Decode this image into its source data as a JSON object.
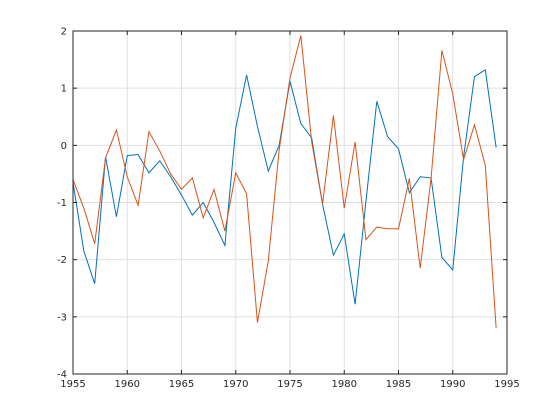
{
  "chart_data": {
    "type": "line",
    "title": "",
    "xlabel": "",
    "ylabel": "",
    "xlim": [
      1955,
      1995
    ],
    "ylim": [
      -4,
      2
    ],
    "xticks": [
      1955,
      1960,
      1965,
      1970,
      1975,
      1980,
      1985,
      1990,
      1995
    ],
    "yticks": [
      -4,
      -3,
      -2,
      -1,
      0,
      1,
      2
    ],
    "grid": true,
    "x": [
      1955,
      1956,
      1957,
      1958,
      1959,
      1960,
      1961,
      1962,
      1963,
      1964,
      1965,
      1966,
      1967,
      1968,
      1969,
      1970,
      1971,
      1972,
      1973,
      1974,
      1975,
      1976,
      1977,
      1978,
      1979,
      1980,
      1981,
      1982,
      1983,
      1984,
      1985,
      1986,
      1987,
      1988,
      1989,
      1990,
      1991,
      1992,
      1993,
      1994
    ],
    "series": [
      {
        "color": "#0072bd",
        "values": [
          -0.65,
          -1.85,
          -2.42,
          -0.2,
          -1.25,
          -0.18,
          -0.16,
          -0.48,
          -0.27,
          -0.55,
          -0.87,
          -1.22,
          -1.0,
          -1.35,
          -1.75,
          0.3,
          1.23,
          0.33,
          -0.45,
          0.0,
          1.12,
          0.38,
          0.13,
          -1.03,
          -1.92,
          -1.55,
          -2.78,
          -0.98,
          0.77,
          0.15,
          -0.06,
          -0.83,
          -0.55,
          -0.57,
          -1.96,
          -2.18,
          -0.2,
          1.2,
          1.32,
          -0.04
        ]
      },
      {
        "color": "#d95319",
        "values": [
          -0.6,
          -1.1,
          -1.72,
          -0.22,
          0.27,
          -0.55,
          -1.05,
          0.24,
          -0.1,
          -0.5,
          -0.77,
          -0.57,
          -1.27,
          -0.77,
          -1.5,
          -0.48,
          -0.85,
          -3.1,
          -2.02,
          -0.08,
          1.18,
          1.92,
          0.06,
          -1.03,
          0.52,
          -1.1,
          0.06,
          -1.65,
          -1.43,
          -1.46,
          -1.46,
          -0.58,
          -2.15,
          -0.58,
          1.66,
          0.9,
          -0.25,
          0.36,
          -0.35,
          -3.2
        ]
      }
    ]
  }
}
